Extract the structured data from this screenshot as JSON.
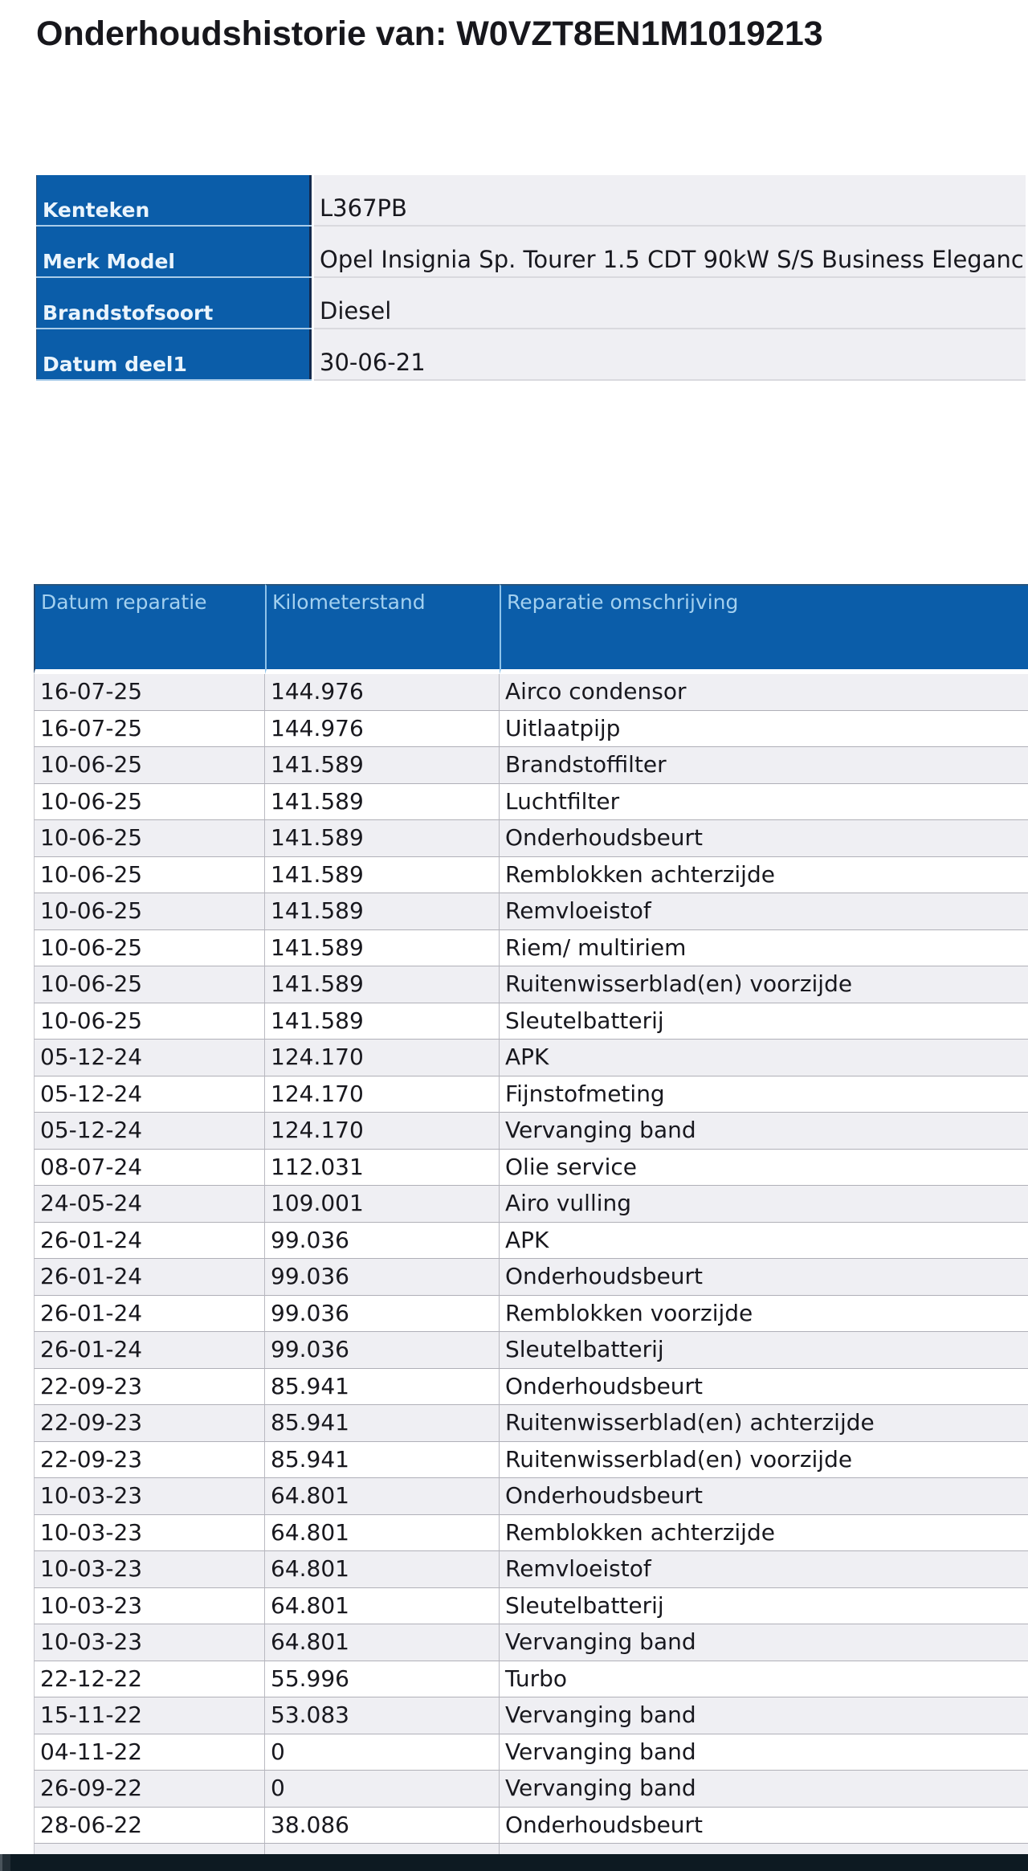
{
  "page": {
    "title": "Onderhoudshistorie van: W0VZT8EN1M1019213"
  },
  "vehicle_details": {
    "rows": [
      {
        "label": "Kenteken",
        "value": "L367PB"
      },
      {
        "label": "Merk Model",
        "value": "Opel Insignia Sp. Tourer 1.5 CDT 90kW S/S Business Eleganc"
      },
      {
        "label": "Brandstofsoort",
        "value": "Diesel"
      },
      {
        "label": "Datum deel1",
        "value": "30-06-21"
      }
    ]
  },
  "maintenance_history": {
    "columns": [
      "Datum reparatie",
      "Kilometerstand",
      "Reparatie omschrijving"
    ],
    "rows": [
      [
        "16-07-25",
        "144.976",
        "Airco condensor"
      ],
      [
        "16-07-25",
        "144.976",
        "Uitlaatpijp"
      ],
      [
        "10-06-25",
        "141.589",
        "Brandstoffilter"
      ],
      [
        "10-06-25",
        "141.589",
        "Luchtfilter"
      ],
      [
        "10-06-25",
        "141.589",
        "Onderhoudsbeurt"
      ],
      [
        "10-06-25",
        "141.589",
        "Remblokken achterzijde"
      ],
      [
        "10-06-25",
        "141.589",
        "Remvloeistof"
      ],
      [
        "10-06-25",
        "141.589",
        "Riem/ multiriem"
      ],
      [
        "10-06-25",
        "141.589",
        "Ruitenwisserblad(en) voorzijde"
      ],
      [
        "10-06-25",
        "141.589",
        "Sleutelbatterij"
      ],
      [
        "05-12-24",
        "124.170",
        "APK"
      ],
      [
        "05-12-24",
        "124.170",
        "Fijnstofmeting"
      ],
      [
        "05-12-24",
        "124.170",
        "Vervanging band"
      ],
      [
        "08-07-24",
        "112.031",
        "Olie service"
      ],
      [
        "24-05-24",
        "109.001",
        "Airo vulling"
      ],
      [
        "26-01-24",
        "99.036",
        "APK"
      ],
      [
        "26-01-24",
        "99.036",
        "Onderhoudsbeurt"
      ],
      [
        "26-01-24",
        "99.036",
        "Remblokken voorzijde"
      ],
      [
        "26-01-24",
        "99.036",
        "Sleutelbatterij"
      ],
      [
        "22-09-23",
        "85.941",
        "Onderhoudsbeurt"
      ],
      [
        "22-09-23",
        "85.941",
        "Ruitenwisserblad(en) achterzijde"
      ],
      [
        "22-09-23",
        "85.941",
        "Ruitenwisserblad(en) voorzijde"
      ],
      [
        "10-03-23",
        "64.801",
        "Onderhoudsbeurt"
      ],
      [
        "10-03-23",
        "64.801",
        "Remblokken achterzijde"
      ],
      [
        "10-03-23",
        "64.801",
        "Remvloeistof"
      ],
      [
        "10-03-23",
        "64.801",
        "Sleutelbatterij"
      ],
      [
        "10-03-23",
        "64.801",
        "Vervanging band"
      ],
      [
        "22-12-22",
        "55.996",
        "Turbo"
      ],
      [
        "15-11-22",
        "53.083",
        "Vervanging band"
      ],
      [
        "04-11-22",
        "0",
        "Vervanging band"
      ],
      [
        "26-09-22",
        "0",
        "Vervanging band"
      ],
      [
        "28-06-22",
        "38.086",
        "Onderhoudsbeurt"
      ]
    ]
  },
  "colors": {
    "header_blue": "#0b5da9",
    "header_text": "#a3d0ef",
    "label_text": "#eaf4fc",
    "body_text": "#18181e",
    "row_alt_background": "#efeff3",
    "row_border": "#b0b0b8",
    "column_divider": "#b9b9c1",
    "label_dark_border": "#132a4e",
    "header_cell_separator": "#8fc3ea",
    "scrollbar_background": "#0d1a22"
  }
}
